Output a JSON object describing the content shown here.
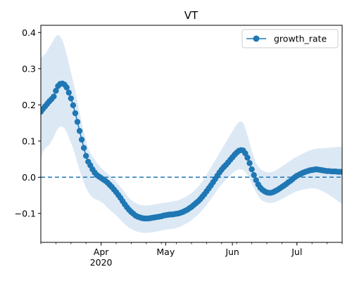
{
  "chart_data": {
    "type": "line",
    "title": "VT",
    "xlabel": "",
    "ylabel": "",
    "x_range": [
      "2020-03-04",
      "2020-07-22"
    ],
    "ylim": [
      -0.18,
      0.42
    ],
    "y_ticks": [
      -0.1,
      0.0,
      0.1,
      0.2,
      0.3,
      0.4
    ],
    "y_tick_labels": [
      "−0.1",
      "0.0",
      "0.1",
      "0.2",
      "0.3",
      "0.4"
    ],
    "x_major_ticks": [
      {
        "date": "2020-04-01",
        "label": "Apr",
        "sublabel": "2020"
      },
      {
        "date": "2020-05-01",
        "label": "May",
        "sublabel": ""
      },
      {
        "date": "2020-06-01",
        "label": "Jun",
        "sublabel": ""
      },
      {
        "date": "2020-07-01",
        "label": "Jul",
        "sublabel": ""
      }
    ],
    "grid": false,
    "legend": {
      "placement": "top-right",
      "entries": [
        "growth_rate"
      ]
    },
    "reference_line": {
      "y": 0.0,
      "style": "dashed",
      "color": "#1f77b4"
    },
    "colors": {
      "series": "#1f77b4",
      "band": "#dce9f5"
    },
    "series": [
      {
        "name": "growth_rate",
        "marker": "circle",
        "start_date": "2020-03-04",
        "values": [
          0.181,
          0.189,
          0.196,
          0.203,
          0.21,
          0.216,
          0.223,
          0.239,
          0.252,
          0.258,
          0.259,
          0.256,
          0.248,
          0.234,
          0.218,
          0.199,
          0.177,
          0.153,
          0.128,
          0.104,
          0.081,
          0.059,
          0.043,
          0.033,
          0.022,
          0.013,
          0.006,
          0.002,
          -0.002,
          -0.006,
          -0.01,
          -0.015,
          -0.021,
          -0.027,
          -0.034,
          -0.041,
          -0.049,
          -0.057,
          -0.066,
          -0.075,
          -0.083,
          -0.09,
          -0.096,
          -0.101,
          -0.106,
          -0.109,
          -0.111,
          -0.113,
          -0.114,
          -0.114,
          -0.114,
          -0.113,
          -0.112,
          -0.111,
          -0.11,
          -0.109,
          -0.108,
          -0.106,
          -0.105,
          -0.104,
          -0.103,
          -0.103,
          -0.102,
          -0.101,
          -0.1,
          -0.098,
          -0.096,
          -0.093,
          -0.09,
          -0.086,
          -0.082,
          -0.077,
          -0.072,
          -0.067,
          -0.061,
          -0.054,
          -0.047,
          -0.039,
          -0.031,
          -0.023,
          -0.014,
          -0.005,
          0.004,
          0.013,
          0.021,
          0.028,
          0.034,
          0.041,
          0.048,
          0.055,
          0.062,
          0.068,
          0.073,
          0.075,
          0.074,
          0.066,
          0.054,
          0.039,
          0.022,
          0.006,
          -0.008,
          -0.02,
          -0.029,
          -0.035,
          -0.039,
          -0.042,
          -0.043,
          -0.043,
          -0.041,
          -0.038,
          -0.035,
          -0.031,
          -0.027,
          -0.023,
          -0.019,
          -0.014,
          -0.01,
          -0.005,
          0.0,
          0.004,
          0.007,
          0.01,
          0.013,
          0.015,
          0.017,
          0.019,
          0.02,
          0.021,
          0.022,
          0.021,
          0.02,
          0.019,
          0.018,
          0.017,
          0.017,
          0.016,
          0.016,
          0.016,
          0.015,
          0.015,
          0.015
        ],
        "band_lower": [
          0.05,
          0.07,
          0.08,
          0.085,
          0.09,
          0.1,
          0.11,
          0.125,
          0.135,
          0.14,
          0.14,
          0.135,
          0.125,
          0.11,
          0.095,
          0.08,
          0.06,
          0.04,
          0.02,
          0.0,
          -0.015,
          -0.03,
          -0.04,
          -0.05,
          -0.055,
          -0.06,
          -0.062,
          -0.065,
          -0.068,
          -0.072,
          -0.078,
          -0.085,
          -0.09,
          -0.096,
          -0.1,
          -0.106,
          -0.112,
          -0.118,
          -0.124,
          -0.13,
          -0.135,
          -0.14,
          -0.143,
          -0.146,
          -0.149,
          -0.151,
          -0.152,
          -0.153,
          -0.154,
          -0.154,
          -0.154,
          -0.153,
          -0.152,
          -0.151,
          -0.15,
          -0.149,
          -0.148,
          -0.146,
          -0.145,
          -0.144,
          -0.143,
          -0.143,
          -0.142,
          -0.14,
          -0.138,
          -0.136,
          -0.133,
          -0.13,
          -0.127,
          -0.123,
          -0.119,
          -0.114,
          -0.109,
          -0.104,
          -0.098,
          -0.091,
          -0.084,
          -0.077,
          -0.069,
          -0.061,
          -0.052,
          -0.044,
          -0.035,
          -0.027,
          -0.02,
          -0.013,
          -0.007,
          -0.001,
          0.005,
          0.011,
          0.016,
          0.02,
          0.022,
          0.022,
          0.02,
          0.014,
          0.006,
          -0.005,
          -0.018,
          -0.03,
          -0.042,
          -0.052,
          -0.06,
          -0.065,
          -0.068,
          -0.07,
          -0.071,
          -0.071,
          -0.07,
          -0.068,
          -0.066,
          -0.063,
          -0.06,
          -0.057,
          -0.054,
          -0.05,
          -0.047,
          -0.044,
          -0.041,
          -0.039,
          -0.037,
          -0.035,
          -0.034,
          -0.033,
          -0.032,
          -0.031,
          -0.031,
          -0.031,
          -0.032,
          -0.034,
          -0.036,
          -0.039,
          -0.042,
          -0.045,
          -0.049,
          -0.053,
          -0.057,
          -0.061,
          -0.066,
          -0.07,
          -0.075
        ],
        "band_upper": [
          0.33,
          0.335,
          0.34,
          0.35,
          0.36,
          0.37,
          0.38,
          0.39,
          0.393,
          0.39,
          0.38,
          0.362,
          0.34,
          0.315,
          0.29,
          0.265,
          0.24,
          0.21,
          0.18,
          0.15,
          0.125,
          0.1,
          0.08,
          0.068,
          0.058,
          0.049,
          0.04,
          0.033,
          0.026,
          0.02,
          0.015,
          0.01,
          0.005,
          0.0,
          -0.006,
          -0.012,
          -0.019,
          -0.026,
          -0.034,
          -0.042,
          -0.05,
          -0.057,
          -0.063,
          -0.067,
          -0.071,
          -0.074,
          -0.076,
          -0.077,
          -0.078,
          -0.078,
          -0.078,
          -0.077,
          -0.076,
          -0.075,
          -0.074,
          -0.073,
          -0.072,
          -0.071,
          -0.07,
          -0.069,
          -0.068,
          -0.067,
          -0.066,
          -0.065,
          -0.063,
          -0.061,
          -0.058,
          -0.055,
          -0.052,
          -0.048,
          -0.044,
          -0.039,
          -0.033,
          -0.027,
          -0.02,
          -0.012,
          -0.003,
          0.007,
          0.017,
          0.027,
          0.037,
          0.047,
          0.057,
          0.067,
          0.077,
          0.087,
          0.097,
          0.107,
          0.117,
          0.127,
          0.137,
          0.146,
          0.153,
          0.155,
          0.15,
          0.136,
          0.116,
          0.095,
          0.074,
          0.055,
          0.04,
          0.03,
          0.023,
          0.019,
          0.016,
          0.014,
          0.013,
          0.014,
          0.016,
          0.019,
          0.022,
          0.026,
          0.03,
          0.034,
          0.038,
          0.042,
          0.046,
          0.05,
          0.054,
          0.057,
          0.06,
          0.063,
          0.066,
          0.069,
          0.072,
          0.074,
          0.076,
          0.078,
          0.079,
          0.08,
          0.08,
          0.08,
          0.081,
          0.081,
          0.082,
          0.082,
          0.083,
          0.083,
          0.084,
          0.084,
          0.085
        ]
      }
    ]
  }
}
